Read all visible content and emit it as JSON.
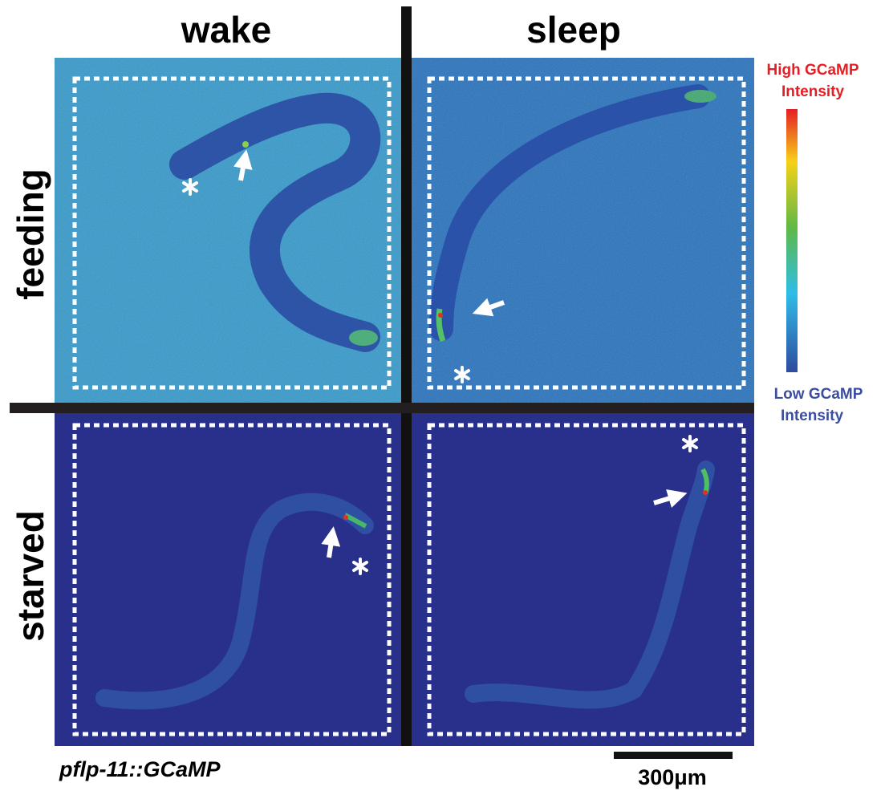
{
  "columns": [
    "wake",
    "sleep"
  ],
  "rows": [
    "feeding",
    "starved"
  ],
  "colorbar": {
    "high_label": [
      "High GCaMP",
      "Intensity"
    ],
    "low_label": [
      "Low GCaMP",
      "Intensity"
    ]
  },
  "genotype": "pflp-11::GCaMP",
  "scale_bar": "300μm"
}
